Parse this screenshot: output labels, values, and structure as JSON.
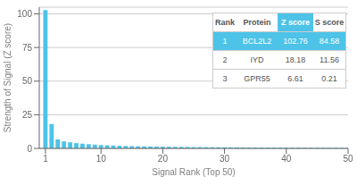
{
  "chart_data": {
    "type": "bar",
    "xlabel": "Signal Rank (Top 50)",
    "ylabel": "Strength of Signal (Z score)",
    "x": [
      1,
      2,
      3,
      4,
      5,
      6,
      7,
      8,
      9,
      10,
      11,
      12,
      13,
      14,
      15,
      16,
      17,
      18,
      19,
      20,
      21,
      22,
      23,
      24,
      25,
      26,
      27,
      28,
      29,
      30,
      31,
      32,
      33,
      34,
      35,
      36,
      37,
      38,
      39,
      40,
      41,
      42,
      43,
      44,
      45,
      46,
      47,
      48,
      49,
      50
    ],
    "values": [
      102.76,
      18.18,
      6.61,
      5.2,
      4.5,
      3.9,
      3.5,
      3.1,
      2.8,
      2.5,
      2.3,
      2.1,
      1.95,
      1.82,
      1.7,
      1.6,
      1.5,
      1.42,
      1.35,
      1.28,
      1.22,
      1.17,
      1.12,
      1.07,
      1.02,
      0.98,
      0.94,
      0.9,
      0.87,
      0.84,
      0.81,
      0.78,
      0.75,
      0.72,
      0.7,
      0.67,
      0.65,
      0.63,
      0.61,
      0.59,
      0.57,
      0.55,
      0.53,
      0.51,
      0.49,
      0.47,
      0.46,
      0.44,
      0.42,
      0.41
    ],
    "color": "#4dc3e8",
    "xlim": [
      0,
      50
    ],
    "ylim": [
      0,
      105
    ],
    "xticks": [
      1,
      10,
      20,
      30,
      40,
      50
    ],
    "yticks": [
      0,
      25,
      50,
      75,
      100
    ],
    "grid": true,
    "table": {
      "header": [
        "Rank",
        "Protein",
        "Z score",
        "S score"
      ],
      "rows": [
        [
          "1",
          "BCL2L2",
          "102.76",
          "84.58"
        ],
        [
          "2",
          "IYD",
          "18.18",
          "11.56"
        ],
        [
          "3",
          "GPR55",
          "6.61",
          "0.21"
        ]
      ]
    }
  }
}
